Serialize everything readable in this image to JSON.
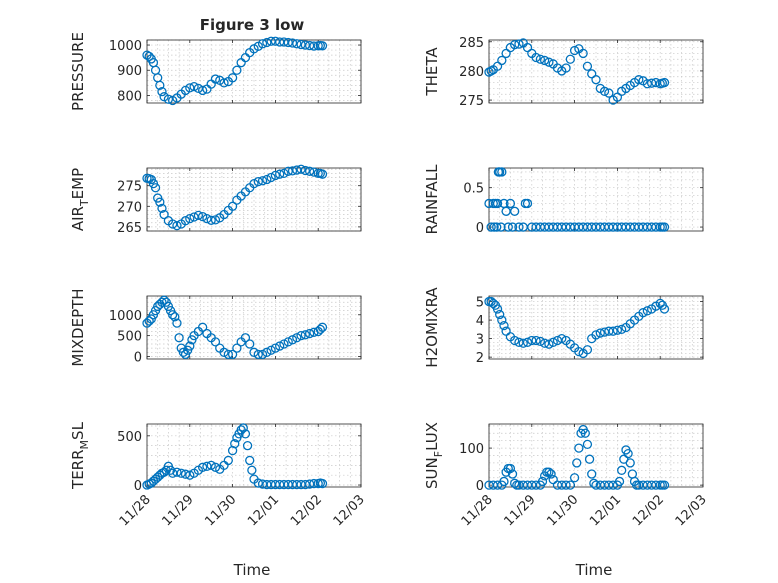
{
  "figure": {
    "title": "Figure 3 low",
    "xlabel": "Time",
    "marker_color": "#0072BD",
    "marker": "open-circle"
  },
  "chart_data": [
    {
      "type": "scatter",
      "ylabel": "PRESSURE",
      "xlim": [
        "11/28",
        "12/03"
      ],
      "ylim": [
        770,
        1020
      ],
      "yticks": [
        800,
        900,
        1000
      ],
      "grid": true,
      "x": [
        0.0,
        0.05,
        0.1,
        0.15,
        0.2,
        0.25,
        0.3,
        0.35,
        0.4,
        0.5,
        0.6,
        0.7,
        0.8,
        0.9,
        1.0,
        1.1,
        1.2,
        1.3,
        1.4,
        1.5,
        1.6,
        1.7,
        1.8,
        1.9,
        2.0,
        2.1,
        2.2,
        2.3,
        2.4,
        2.5,
        2.6,
        2.7,
        2.8,
        2.9,
        3.0,
        3.1,
        3.2,
        3.3,
        3.4,
        3.5,
        3.6,
        3.7,
        3.8,
        3.9,
        4.0,
        4.05,
        4.1
      ],
      "y": [
        960,
        955,
        945,
        930,
        900,
        870,
        840,
        815,
        795,
        785,
        780,
        790,
        805,
        820,
        830,
        835,
        828,
        820,
        825,
        845,
        865,
        860,
        850,
        855,
        870,
        900,
        930,
        950,
        970,
        985,
        995,
        1005,
        1010,
        1015,
        1015,
        1012,
        1012,
        1010,
        1008,
        1005,
        1002,
        1000,
        998,
        996,
        997,
        998,
        997
      ]
    },
    {
      "type": "scatter",
      "ylabel": "THETA",
      "xlim": [
        "11/28",
        "12/03"
      ],
      "ylim": [
        274.5,
        285.3
      ],
      "yticks": [
        275,
        280,
        285
      ],
      "grid": true,
      "x": [
        0.0,
        0.05,
        0.1,
        0.2,
        0.3,
        0.4,
        0.5,
        0.6,
        0.7,
        0.8,
        0.9,
        1.0,
        1.1,
        1.2,
        1.3,
        1.4,
        1.5,
        1.6,
        1.7,
        1.8,
        1.9,
        2.0,
        2.1,
        2.2,
        2.3,
        2.4,
        2.5,
        2.6,
        2.7,
        2.8,
        2.9,
        3.0,
        3.1,
        3.2,
        3.3,
        3.4,
        3.5,
        3.6,
        3.7,
        3.8,
        3.9,
        4.0,
        4.05,
        4.1
      ],
      "y": [
        279.8,
        280.0,
        280.2,
        280.8,
        281.8,
        283.0,
        284.0,
        284.5,
        284.6,
        284.8,
        284.0,
        283.0,
        282.3,
        282.0,
        281.8,
        281.5,
        281.2,
        280.5,
        280.0,
        280.5,
        282.0,
        283.5,
        283.8,
        283.0,
        280.8,
        279.5,
        278.5,
        277.0,
        276.5,
        276.2,
        275.0,
        275.5,
        276.5,
        277.0,
        277.5,
        278.0,
        278.5,
        278.3,
        277.8,
        277.9,
        278.0,
        277.8,
        277.9,
        278.0
      ]
    },
    {
      "type": "scatter",
      "ylabel": "AIR_TEMP",
      "xlim": [
        "11/28",
        "12/03"
      ],
      "ylim": [
        264,
        279.3
      ],
      "yticks": [
        265,
        270,
        275
      ],
      "grid": true,
      "x": [
        0.0,
        0.05,
        0.1,
        0.15,
        0.2,
        0.25,
        0.3,
        0.35,
        0.4,
        0.5,
        0.6,
        0.7,
        0.8,
        0.9,
        1.0,
        1.1,
        1.2,
        1.3,
        1.4,
        1.5,
        1.6,
        1.7,
        1.8,
        1.9,
        2.0,
        2.1,
        2.2,
        2.3,
        2.4,
        2.5,
        2.6,
        2.7,
        2.8,
        2.9,
        3.0,
        3.1,
        3.2,
        3.3,
        3.4,
        3.5,
        3.6,
        3.7,
        3.8,
        3.9,
        4.0,
        4.05,
        4.1
      ],
      "y": [
        276.8,
        276.7,
        276.5,
        275.5,
        274.5,
        272.0,
        271.0,
        269.5,
        268.0,
        266.5,
        265.7,
        265.3,
        265.7,
        266.5,
        267.0,
        267.4,
        267.8,
        267.5,
        267.0,
        266.6,
        266.7,
        267.2,
        268.0,
        269.0,
        270.0,
        271.5,
        272.5,
        273.5,
        274.5,
        275.5,
        276.0,
        276.2,
        276.5,
        277.0,
        277.5,
        277.8,
        278.0,
        278.5,
        278.6,
        278.8,
        279.0,
        278.7,
        278.5,
        278.3,
        278.0,
        278.0,
        277.8
      ]
    },
    {
      "type": "scatter",
      "ylabel": "RAINFALL",
      "xlim": [
        "11/28",
        "12/03"
      ],
      "ylim": [
        -0.05,
        0.75
      ],
      "yticks": [
        0,
        0.5
      ],
      "grid": true,
      "x": [
        0.0,
        0.05,
        0.1,
        0.12,
        0.15,
        0.18,
        0.2,
        0.22,
        0.25,
        0.28,
        0.3,
        0.35,
        0.4,
        0.45,
        0.5,
        0.55,
        0.6,
        0.7,
        0.8,
        0.85,
        0.9,
        1.0,
        1.1,
        1.2,
        1.3,
        1.4,
        1.5,
        1.6,
        1.7,
        1.8,
        1.9,
        2.0,
        2.1,
        2.2,
        2.3,
        2.4,
        2.5,
        2.6,
        2.7,
        2.8,
        2.9,
        3.0,
        3.1,
        3.2,
        3.3,
        3.4,
        3.5,
        3.6,
        3.7,
        3.8,
        3.9,
        4.0,
        4.05,
        4.1
      ],
      "y": [
        0.3,
        0.0,
        0.3,
        0.0,
        0.3,
        0.0,
        0.3,
        0.7,
        0.7,
        0.0,
        0.7,
        0.3,
        0.2,
        0.0,
        0.3,
        0.0,
        0.2,
        0.0,
        0.0,
        0.3,
        0.3,
        0.0,
        0.0,
        0.0,
        0.0,
        0.0,
        0.0,
        0.0,
        0.0,
        0.0,
        0.0,
        0.0,
        0.0,
        0.0,
        0.0,
        0.0,
        0.0,
        0.0,
        0.0,
        0.0,
        0.0,
        0.0,
        0.0,
        0.0,
        0.0,
        0.0,
        0.0,
        0.0,
        0.0,
        0.0,
        0.0,
        0.0,
        0.0,
        0.0
      ]
    },
    {
      "type": "scatter",
      "ylabel": "MIXDEPTH",
      "xlim": [
        "11/28",
        "12/03"
      ],
      "ylim": [
        -60,
        1450
      ],
      "yticks": [
        0,
        500,
        1000
      ],
      "grid": true,
      "x": [
        0.0,
        0.05,
        0.1,
        0.15,
        0.2,
        0.25,
        0.3,
        0.35,
        0.4,
        0.45,
        0.5,
        0.55,
        0.6,
        0.65,
        0.7,
        0.75,
        0.8,
        0.85,
        0.9,
        0.95,
        1.0,
        1.05,
        1.1,
        1.2,
        1.3,
        1.4,
        1.5,
        1.6,
        1.7,
        1.8,
        1.9,
        2.0,
        2.1,
        2.2,
        2.3,
        2.4,
        2.5,
        2.6,
        2.7,
        2.8,
        2.9,
        3.0,
        3.1,
        3.2,
        3.3,
        3.4,
        3.5,
        3.6,
        3.7,
        3.8,
        3.9,
        4.0,
        4.05,
        4.1
      ],
      "y": [
        800,
        850,
        900,
        1000,
        1100,
        1200,
        1250,
        1300,
        1350,
        1300,
        1200,
        1100,
        1000,
        950,
        800,
        450,
        200,
        100,
        50,
        150,
        250,
        400,
        500,
        600,
        700,
        550,
        450,
        350,
        200,
        100,
        50,
        50,
        200,
        350,
        450,
        300,
        100,
        50,
        50,
        100,
        150,
        200,
        250,
        300,
        350,
        400,
        450,
        500,
        520,
        550,
        580,
        600,
        650,
        700
      ]
    },
    {
      "type": "scatter",
      "ylabel": "H2OMIXRA",
      "xlim": [
        "11/28",
        "12/03"
      ],
      "ylim": [
        1.9,
        5.3
      ],
      "yticks": [
        2,
        3,
        4,
        5
      ],
      "grid": true,
      "x": [
        0.0,
        0.05,
        0.1,
        0.15,
        0.2,
        0.25,
        0.3,
        0.35,
        0.4,
        0.5,
        0.6,
        0.7,
        0.8,
        0.9,
        1.0,
        1.1,
        1.2,
        1.3,
        1.4,
        1.5,
        1.6,
        1.7,
        1.8,
        1.9,
        2.0,
        2.1,
        2.2,
        2.3,
        2.4,
        2.5,
        2.6,
        2.7,
        2.8,
        2.9,
        3.0,
        3.1,
        3.2,
        3.3,
        3.4,
        3.5,
        3.6,
        3.7,
        3.8,
        3.9,
        4.0,
        4.05,
        4.1
      ],
      "y": [
        5.0,
        5.0,
        4.9,
        4.8,
        4.6,
        4.3,
        4.0,
        3.7,
        3.4,
        3.1,
        2.9,
        2.8,
        2.75,
        2.8,
        2.9,
        2.9,
        2.85,
        2.75,
        2.7,
        2.8,
        2.9,
        3.0,
        2.9,
        2.7,
        2.5,
        2.3,
        2.2,
        2.4,
        3.0,
        3.2,
        3.3,
        3.35,
        3.4,
        3.4,
        3.45,
        3.5,
        3.6,
        3.8,
        4.0,
        4.2,
        4.4,
        4.5,
        4.6,
        4.75,
        4.9,
        4.8,
        4.6
      ]
    },
    {
      "type": "scatter",
      "ylabel": "TERR_MSL",
      "xlim": [
        "11/28",
        "12/03"
      ],
      "ylim": [
        -20,
        620
      ],
      "yticks": [
        0,
        500
      ],
      "grid": true,
      "x": [
        0.0,
        0.05,
        0.1,
        0.15,
        0.2,
        0.25,
        0.3,
        0.35,
        0.4,
        0.45,
        0.5,
        0.55,
        0.6,
        0.7,
        0.8,
        0.9,
        1.0,
        1.1,
        1.2,
        1.3,
        1.4,
        1.5,
        1.6,
        1.7,
        1.8,
        1.9,
        2.0,
        2.05,
        2.1,
        2.15,
        2.2,
        2.25,
        2.3,
        2.35,
        2.4,
        2.45,
        2.5,
        2.6,
        2.7,
        2.8,
        2.9,
        3.0,
        3.1,
        3.2,
        3.3,
        3.4,
        3.5,
        3.6,
        3.7,
        3.8,
        3.9,
        4.0,
        4.05,
        4.1
      ],
      "y": [
        0,
        10,
        20,
        40,
        60,
        80,
        100,
        120,
        130,
        150,
        190,
        150,
        120,
        130,
        120,
        110,
        100,
        120,
        150,
        180,
        190,
        200,
        180,
        160,
        200,
        250,
        350,
        420,
        480,
        520,
        560,
        580,
        520,
        400,
        250,
        150,
        60,
        20,
        10,
        5,
        5,
        5,
        5,
        5,
        5,
        5,
        5,
        5,
        5,
        10,
        15,
        15,
        20,
        15
      ]
    },
    {
      "type": "scatter",
      "ylabel": "SUN_FLUX",
      "xlim": [
        "11/28",
        "12/03"
      ],
      "ylim": [
        -5,
        165
      ],
      "yticks": [
        0,
        100
      ],
      "grid": true,
      "x": [
        0.0,
        0.1,
        0.2,
        0.3,
        0.35,
        0.4,
        0.45,
        0.5,
        0.55,
        0.6,
        0.65,
        0.7,
        0.8,
        0.9,
        1.0,
        1.1,
        1.2,
        1.25,
        1.3,
        1.35,
        1.4,
        1.45,
        1.5,
        1.6,
        1.7,
        1.8,
        1.9,
        2.0,
        2.05,
        2.1,
        2.15,
        2.2,
        2.25,
        2.3,
        2.35,
        2.4,
        2.45,
        2.5,
        2.6,
        2.7,
        2.8,
        2.9,
        3.0,
        3.05,
        3.1,
        3.15,
        3.2,
        3.25,
        3.3,
        3.35,
        3.4,
        3.45,
        3.5,
        3.6,
        3.7,
        3.8,
        3.9,
        4.0,
        4.05,
        4.1
      ],
      "y": [
        0,
        0,
        0,
        0,
        10,
        35,
        45,
        45,
        30,
        5,
        0,
        0,
        0,
        0,
        0,
        0,
        0,
        10,
        25,
        35,
        35,
        30,
        15,
        0,
        0,
        0,
        0,
        20,
        60,
        100,
        140,
        150,
        140,
        110,
        70,
        30,
        5,
        0,
        0,
        0,
        0,
        0,
        0,
        10,
        40,
        70,
        95,
        85,
        60,
        30,
        10,
        0,
        0,
        0,
        0,
        0,
        0,
        0,
        0,
        0
      ]
    }
  ],
  "x_tick_labels": [
    "11/28",
    "11/29",
    "11/30",
    "12/01",
    "12/02",
    "12/03"
  ]
}
